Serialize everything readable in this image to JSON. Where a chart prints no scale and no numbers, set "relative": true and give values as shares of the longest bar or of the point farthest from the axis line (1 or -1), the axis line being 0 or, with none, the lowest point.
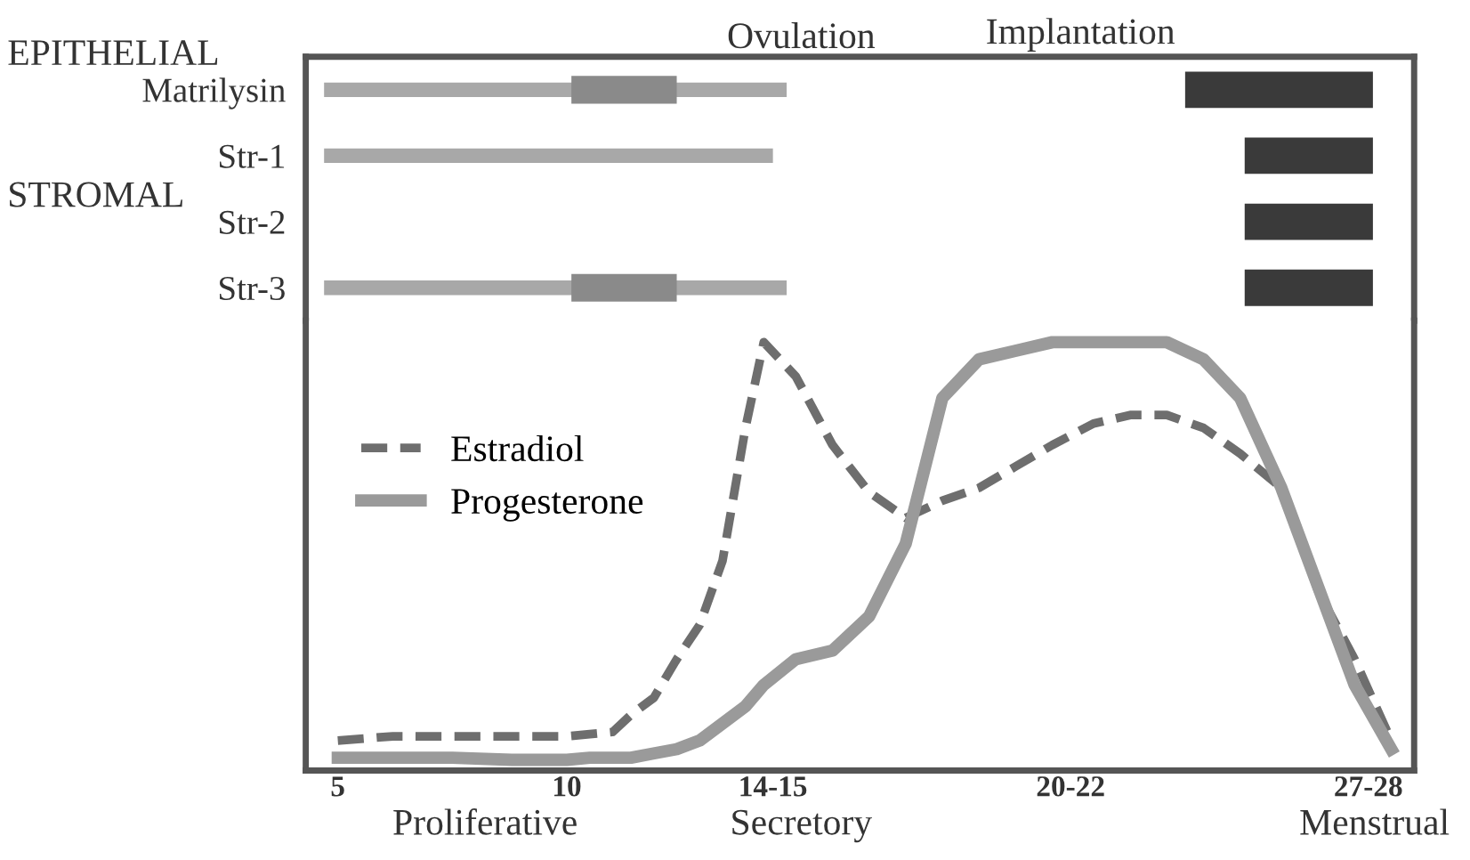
{
  "chart_data": [
    {
      "type": "bar",
      "orientation": "horizontal",
      "tick_labels": "y",
      "categories": [
        "Matrilysin",
        "Str-1",
        "Str-2",
        "Str-3"
      ],
      "xlim": [
        4.3,
        28.5
      ],
      "series": [
        {
          "color": "#a8a8a8",
          "base": [
            4.7,
            4.7,
            null,
            4.7
          ],
          "values": [
            10.1,
            9.8,
            null,
            10.1
          ]
        },
        {
          "color": "#8a8a8a",
          "base": [
            10.1,
            null,
            null,
            10.1
          ],
          "values": [
            2.3,
            null,
            null,
            2.3
          ]
        },
        {
          "color": "#3a3a3a",
          "base": [
            23.5,
            24.8,
            24.8,
            24.8
          ],
          "values": [
            4.1,
            2.8,
            2.8,
            2.8
          ]
        }
      ],
      "annotations": [
        "EPITHELIAL",
        "STROMAL",
        "Ovulation",
        "Implantation"
      ]
    },
    {
      "type": "line",
      "relative": true,
      "legend": "left",
      "tick_labels": "x",
      "x": [
        5,
        6.2,
        7.5,
        8.8,
        10,
        10.5,
        11,
        11.4,
        11.9,
        12.4,
        12.9,
        13.4,
        13.9,
        14.3,
        15,
        15.8,
        16.6,
        17.4,
        18.2,
        19,
        19.8,
        20.6,
        21.5,
        22.3,
        23.1,
        23.9,
        24.7,
        25.6,
        26.4,
        27.2,
        28
      ],
      "xlim": [
        4.3,
        28.5
      ],
      "xticks": [
        5,
        10,
        {
          "value": 14.5,
          "label": "14-15"
        },
        {
          "value": 21,
          "label": "20-22"
        },
        {
          "value": 27.5,
          "label": "27-28"
        }
      ],
      "series": [
        {
          "name": "Estradiol",
          "color": "#6e6e6e",
          "line_style": "dashed",
          "values": [
            0.07,
            0.08,
            0.08,
            0.08,
            0.08,
            0.085,
            0.09,
            0.13,
            0.17,
            0.26,
            0.34,
            0.49,
            0.8,
            1.0,
            0.92,
            0.76,
            0.65,
            0.59,
            0.63,
            0.66,
            0.71,
            0.76,
            0.81,
            0.83,
            0.83,
            0.8,
            0.74,
            0.66,
            0.42,
            0.26,
            0.07
          ]
        },
        {
          "name": "Progesterone",
          "color": "#9a9a9a",
          "line_style": "solid",
          "values": [
            0.03,
            0.03,
            0.03,
            0.025,
            0.025,
            0.03,
            0.03,
            0.03,
            0.04,
            0.05,
            0.07,
            0.11,
            0.15,
            0.2,
            0.26,
            0.28,
            0.36,
            0.53,
            0.87,
            0.96,
            0.98,
            1.0,
            1.0,
            1.0,
            1.0,
            0.96,
            0.87,
            0.66,
            0.43,
            0.2,
            0.05
          ]
        }
      ],
      "annotations": [
        "Proliferative",
        "Secretory",
        "Menstrual"
      ]
    }
  ]
}
